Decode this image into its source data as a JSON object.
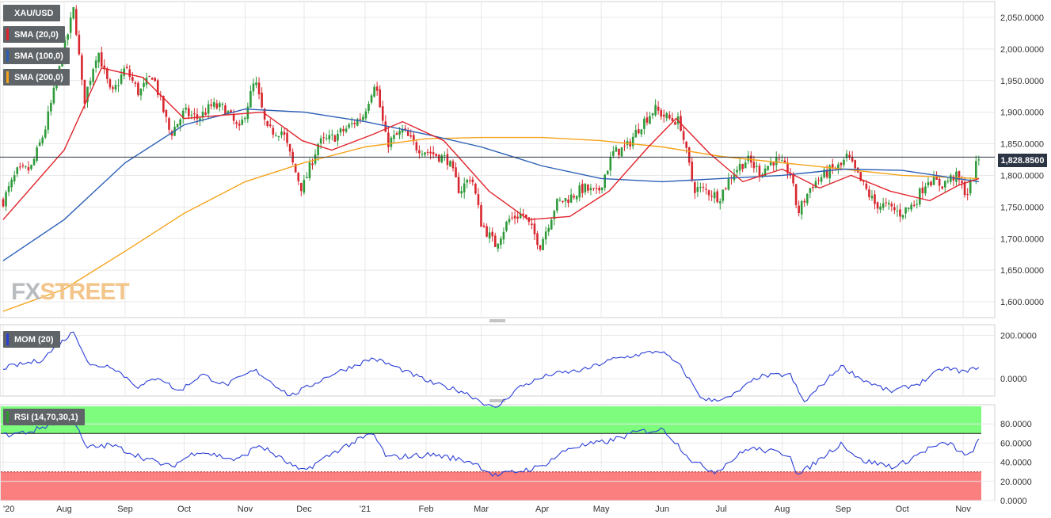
{
  "legends": {
    "main": {
      "label": "XAU/USD",
      "color": "#5f6468"
    },
    "sma20": {
      "label": "SMA (20,0)",
      "color": "#e0242b"
    },
    "sma100": {
      "label": "SMA (100,0)",
      "color": "#2b5fb5"
    },
    "sma200": {
      "label": "SMA (200,0)",
      "color": "#f5a31a"
    },
    "mom": {
      "label": "MOM (20)",
      "color": "#2b3fd6"
    },
    "rsi": {
      "label": "RSI (14,70,30,1)",
      "color": "#2b9a2b"
    }
  },
  "logo": {
    "part1": "FX",
    "part2": "STREET"
  },
  "current_price": "1,828.8500",
  "colors": {
    "bull": "#2e9a3a",
    "bear": "#d8262e",
    "sma20": "#e0242b",
    "sma100": "#2b5fb5",
    "sma200": "#f5a31a",
    "mom_line": "#2b3fd6",
    "rsi_line": "#2b3fd6",
    "rsi_overbought_band": "#7dfc7d",
    "rsi_oversold_band": "#fb7f7f",
    "grid": "#e8e8e8"
  },
  "chart_data": [
    {
      "type": "candlestick",
      "series": [
        {
          "name": "XAU/USD"
        },
        {
          "name": "SMA (20,0)"
        },
        {
          "name": "SMA (100,0)"
        },
        {
          "name": "SMA (200,0)"
        }
      ],
      "ylim": [
        1575,
        2075
      ],
      "y_ticks": [
        "2,050.0000",
        "2,000.0000",
        "1,950.0000",
        "1,900.0000",
        "1,850.0000",
        "1,800.0000",
        "1,750.0000",
        "1,700.0000",
        "1,650.0000",
        "1,600.0000"
      ],
      "y_tick_values": [
        2050,
        2000,
        1950,
        1900,
        1850,
        1800,
        1750,
        1700,
        1650,
        1600
      ],
      "x_labels": [
        "'20",
        "Aug",
        "Sep",
        "Oct",
        "Nov",
        "Dec",
        "'21",
        "Feb",
        "Mar",
        "Apr",
        "May",
        "Jun",
        "Jul",
        "Aug",
        "Sep",
        "Oct",
        "Nov"
      ],
      "x_label_dates": [
        "2020-07-01",
        "2020-08-01",
        "2020-09-01",
        "2020-10-01",
        "2020-11-01",
        "2020-12-01",
        "2021-01-01",
        "2021-02-01",
        "2021-03-01",
        "2021-04-01",
        "2021-05-01",
        "2021-06-01",
        "2021-07-01",
        "2021-08-01",
        "2021-09-01",
        "2021-10-01",
        "2021-11-01"
      ],
      "last_close": 1828.85,
      "close_points": [
        [
          "2020-07-01",
          1760
        ],
        [
          "2020-07-08",
          1805
        ],
        [
          "2020-07-15",
          1810
        ],
        [
          "2020-07-22",
          1870
        ],
        [
          "2020-07-29",
          1960
        ],
        [
          "2020-08-06",
          2065
        ],
        [
          "2020-08-11",
          1915
        ],
        [
          "2020-08-18",
          2000
        ],
        [
          "2020-08-25",
          1925
        ],
        [
          "2020-09-01",
          1970
        ],
        [
          "2020-09-08",
          1930
        ],
        [
          "2020-09-15",
          1960
        ],
        [
          "2020-09-24",
          1865
        ],
        [
          "2020-10-01",
          1900
        ],
        [
          "2020-10-08",
          1890
        ],
        [
          "2020-10-15",
          1910
        ],
        [
          "2020-10-22",
          1905
        ],
        [
          "2020-10-29",
          1870
        ],
        [
          "2020-11-06",
          1950
        ],
        [
          "2020-11-12",
          1870
        ],
        [
          "2020-11-20",
          1870
        ],
        [
          "2020-11-26",
          1810
        ],
        [
          "2020-11-30",
          1778
        ],
        [
          "2020-12-08",
          1850
        ],
        [
          "2020-12-16",
          1860
        ],
        [
          "2020-12-23",
          1875
        ],
        [
          "2020-12-31",
          1895
        ],
        [
          "2021-01-06",
          1950
        ],
        [
          "2021-01-12",
          1850
        ],
        [
          "2021-01-20",
          1870
        ],
        [
          "2021-01-27",
          1845
        ],
        [
          "2021-02-04",
          1835
        ],
        [
          "2021-02-12",
          1825
        ],
        [
          "2021-02-18",
          1775
        ],
        [
          "2021-02-24",
          1800
        ],
        [
          "2021-03-01",
          1725
        ],
        [
          "2021-03-08",
          1690
        ],
        [
          "2021-03-15",
          1730
        ],
        [
          "2021-03-22",
          1740
        ],
        [
          "2021-03-31",
          1690
        ],
        [
          "2021-04-08",
          1755
        ],
        [
          "2021-04-15",
          1765
        ],
        [
          "2021-04-22",
          1780
        ],
        [
          "2021-04-29",
          1770
        ],
        [
          "2021-05-07",
          1835
        ],
        [
          "2021-05-14",
          1845
        ],
        [
          "2021-05-21",
          1880
        ],
        [
          "2021-05-28",
          1905
        ],
        [
          "2021-06-04",
          1890
        ],
        [
          "2021-06-10",
          1885
        ],
        [
          "2021-06-17",
          1780
        ],
        [
          "2021-06-24",
          1775
        ],
        [
          "2021-06-30",
          1765
        ],
        [
          "2021-07-07",
          1805
        ],
        [
          "2021-07-14",
          1825
        ],
        [
          "2021-07-21",
          1805
        ],
        [
          "2021-07-28",
          1825
        ],
        [
          "2021-08-05",
          1805
        ],
        [
          "2021-08-09",
          1740
        ],
        [
          "2021-08-16",
          1785
        ],
        [
          "2021-08-24",
          1805
        ],
        [
          "2021-08-31",
          1815
        ],
        [
          "2021-09-03",
          1830
        ],
        [
          "2021-09-10",
          1790
        ],
        [
          "2021-09-17",
          1755
        ],
        [
          "2021-09-24",
          1750
        ],
        [
          "2021-09-30",
          1740
        ],
        [
          "2021-10-07",
          1755
        ],
        [
          "2021-10-14",
          1795
        ],
        [
          "2021-10-21",
          1785
        ],
        [
          "2021-10-28",
          1800
        ],
        [
          "2021-11-03",
          1770
        ],
        [
          "2021-11-09",
          1828.85
        ]
      ],
      "sma20_points": [
        [
          "2020-07-01",
          1730
        ],
        [
          "2020-08-01",
          1840
        ],
        [
          "2020-08-20",
          1970
        ],
        [
          "2020-09-10",
          1955
        ],
        [
          "2020-10-01",
          1890
        ],
        [
          "2020-10-20",
          1895
        ],
        [
          "2020-11-10",
          1900
        ],
        [
          "2020-11-30",
          1855
        ],
        [
          "2020-12-15",
          1840
        ],
        [
          "2021-01-05",
          1865
        ],
        [
          "2021-01-20",
          1885
        ],
        [
          "2021-02-10",
          1855
        ],
        [
          "2021-03-05",
          1775
        ],
        [
          "2021-03-25",
          1730
        ],
        [
          "2021-04-15",
          1735
        ],
        [
          "2021-05-05",
          1775
        ],
        [
          "2021-05-25",
          1845
        ],
        [
          "2021-06-08",
          1890
        ],
        [
          "2021-06-25",
          1835
        ],
        [
          "2021-07-12",
          1790
        ],
        [
          "2021-08-01",
          1810
        ],
        [
          "2021-08-20",
          1780
        ],
        [
          "2021-09-05",
          1800
        ],
        [
          "2021-09-25",
          1775
        ],
        [
          "2021-10-15",
          1760
        ],
        [
          "2021-10-30",
          1785
        ],
        [
          "2021-11-09",
          1795
        ]
      ],
      "sma100_points": [
        [
          "2020-07-01",
          1665
        ],
        [
          "2020-08-01",
          1730
        ],
        [
          "2020-09-01",
          1820
        ],
        [
          "2020-10-01",
          1880
        ],
        [
          "2020-11-01",
          1905
        ],
        [
          "2020-12-01",
          1900
        ],
        [
          "2021-01-01",
          1885
        ],
        [
          "2021-02-01",
          1865
        ],
        [
          "2021-03-01",
          1845
        ],
        [
          "2021-04-01",
          1815
        ],
        [
          "2021-05-01",
          1795
        ],
        [
          "2021-06-01",
          1790
        ],
        [
          "2021-07-01",
          1795
        ],
        [
          "2021-08-01",
          1800
        ],
        [
          "2021-09-01",
          1810
        ],
        [
          "2021-10-01",
          1808
        ],
        [
          "2021-11-09",
          1790
        ]
      ],
      "sma200_points": [
        [
          "2020-07-01",
          1585
        ],
        [
          "2020-08-01",
          1620
        ],
        [
          "2020-09-01",
          1680
        ],
        [
          "2020-10-01",
          1740
        ],
        [
          "2020-11-01",
          1790
        ],
        [
          "2020-12-01",
          1820
        ],
        [
          "2021-01-01",
          1845
        ],
        [
          "2021-02-01",
          1858
        ],
        [
          "2021-03-01",
          1860
        ],
        [
          "2021-04-01",
          1860
        ],
        [
          "2021-05-01",
          1855
        ],
        [
          "2021-06-01",
          1845
        ],
        [
          "2021-07-01",
          1830
        ],
        [
          "2021-08-01",
          1820
        ],
        [
          "2021-09-01",
          1810
        ],
        [
          "2021-10-01",
          1800
        ],
        [
          "2021-11-09",
          1795
        ]
      ]
    },
    {
      "type": "line",
      "series": [
        {
          "name": "MOM (20)"
        }
      ],
      "ylim": [
        -80,
        250
      ],
      "y_ticks": [
        "200.0000",
        "0.0000"
      ],
      "y_tick_values": [
        200,
        0
      ],
      "points": [
        [
          "2020-07-01",
          50
        ],
        [
          "2020-07-20",
          85
        ],
        [
          "2020-08-06",
          220
        ],
        [
          "2020-08-14",
          60
        ],
        [
          "2020-08-25",
          60
        ],
        [
          "2020-09-08",
          -40
        ],
        [
          "2020-09-18",
          10
        ],
        [
          "2020-09-28",
          -60
        ],
        [
          "2020-10-10",
          20
        ],
        [
          "2020-10-22",
          -30
        ],
        [
          "2020-11-06",
          40
        ],
        [
          "2020-11-24",
          -80
        ],
        [
          "2020-12-15",
          20
        ],
        [
          "2021-01-05",
          95
        ],
        [
          "2021-01-15",
          60
        ],
        [
          "2021-02-04",
          -20
        ],
        [
          "2021-02-20",
          -60
        ],
        [
          "2021-03-08",
          -140
        ],
        [
          "2021-03-20",
          -40
        ],
        [
          "2021-04-05",
          20
        ],
        [
          "2021-04-22",
          40
        ],
        [
          "2021-05-07",
          90
        ],
        [
          "2021-05-31",
          130
        ],
        [
          "2021-06-10",
          60
        ],
        [
          "2021-06-22",
          -100
        ],
        [
          "2021-07-05",
          -90
        ],
        [
          "2021-07-20",
          10
        ],
        [
          "2021-08-05",
          20
        ],
        [
          "2021-08-12",
          -110
        ],
        [
          "2021-08-31",
          60
        ],
        [
          "2021-09-10",
          0
        ],
        [
          "2021-09-25",
          -60
        ],
        [
          "2021-10-10",
          -20
        ],
        [
          "2021-10-22",
          50
        ],
        [
          "2021-11-03",
          30
        ],
        [
          "2021-11-09",
          60
        ]
      ]
    },
    {
      "type": "line",
      "series": [
        {
          "name": "RSI (14,70,30,1)"
        }
      ],
      "ylim": [
        0,
        100
      ],
      "y_ticks": [
        "80.0000",
        "60.0000",
        "40.0000",
        "20.0000",
        "0.0000"
      ],
      "y_tick_values": [
        80,
        60,
        40,
        20,
        0
      ],
      "bands": {
        "overbought": 70,
        "oversold": 30
      },
      "points": [
        [
          "2020-07-01",
          68
        ],
        [
          "2020-07-15",
          72
        ],
        [
          "2020-08-05",
          88
        ],
        [
          "2020-08-12",
          55
        ],
        [
          "2020-08-25",
          58
        ],
        [
          "2020-09-10",
          45
        ],
        [
          "2020-09-24",
          35
        ],
        [
          "2020-10-08",
          52
        ],
        [
          "2020-10-28",
          42
        ],
        [
          "2020-11-08",
          58
        ],
        [
          "2020-11-30",
          30
        ],
        [
          "2020-12-20",
          55
        ],
        [
          "2021-01-05",
          70
        ],
        [
          "2021-01-12",
          45
        ],
        [
          "2021-02-05",
          48
        ],
        [
          "2021-02-25",
          40
        ],
        [
          "2021-03-08",
          26
        ],
        [
          "2021-03-31",
          35
        ],
        [
          "2021-04-15",
          55
        ],
        [
          "2021-05-05",
          62
        ],
        [
          "2021-05-20",
          72
        ],
        [
          "2021-06-02",
          74
        ],
        [
          "2021-06-17",
          40
        ],
        [
          "2021-06-28",
          30
        ],
        [
          "2021-07-15",
          55
        ],
        [
          "2021-08-05",
          48
        ],
        [
          "2021-08-09",
          26
        ],
        [
          "2021-08-31",
          60
        ],
        [
          "2021-09-10",
          42
        ],
        [
          "2021-09-28",
          35
        ],
        [
          "2021-10-15",
          55
        ],
        [
          "2021-10-25",
          60
        ],
        [
          "2021-11-03",
          45
        ],
        [
          "2021-11-09",
          62
        ]
      ]
    }
  ]
}
